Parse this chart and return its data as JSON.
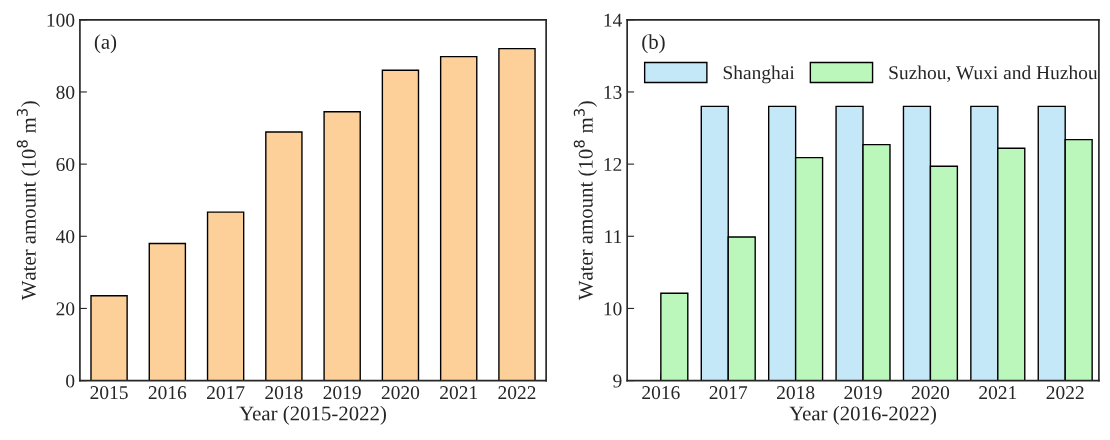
{
  "chart_data": [
    {
      "type": "bar",
      "xlabel": "Year (2015-2022)",
      "ylabel": "Water amount (10$^{8}$ m$^{3}$)",
      "annotations": [
        "(a)"
      ],
      "categories": [
        "2015",
        "2016",
        "2017",
        "2018",
        "2019",
        "2020",
        "2021",
        "2022"
      ],
      "series": [
        {
          "color": "#fdd09a",
          "values": [
            23.5,
            38,
            46.7,
            68.9,
            74.5,
            86,
            89.8,
            92
          ]
        }
      ],
      "ylim": [
        0,
        100
      ],
      "yticks": [
        0,
        20,
        40,
        60,
        80,
        100
      ],
      "grid": false,
      "legend": false
    },
    {
      "type": "bar",
      "xlabel": "Year (2016-2022)",
      "ylabel": "Water amount (10$^{8}$ m$^{3}$)",
      "annotations": [
        "(b)"
      ],
      "categories": [
        "2016",
        "2017",
        "2018",
        "2019",
        "2020",
        "2021",
        "2022"
      ],
      "series": [
        {
          "name": "Shanghai",
          "color": "#c5e8f8",
          "values": [
            null,
            12.8,
            12.8,
            12.8,
            12.8,
            12.8,
            12.8
          ]
        },
        {
          "name": "Suzhou, Wuxi and Huzhou",
          "color": "#bbf7bb",
          "values": [
            10.21,
            10.99,
            12.09,
            12.27,
            11.97,
            12.22,
            12.34
          ]
        }
      ],
      "ylim": [
        9,
        14
      ],
      "yticks": [
        9,
        10,
        11,
        12,
        13,
        14
      ],
      "grid": false,
      "legend": "top left"
    }
  ]
}
